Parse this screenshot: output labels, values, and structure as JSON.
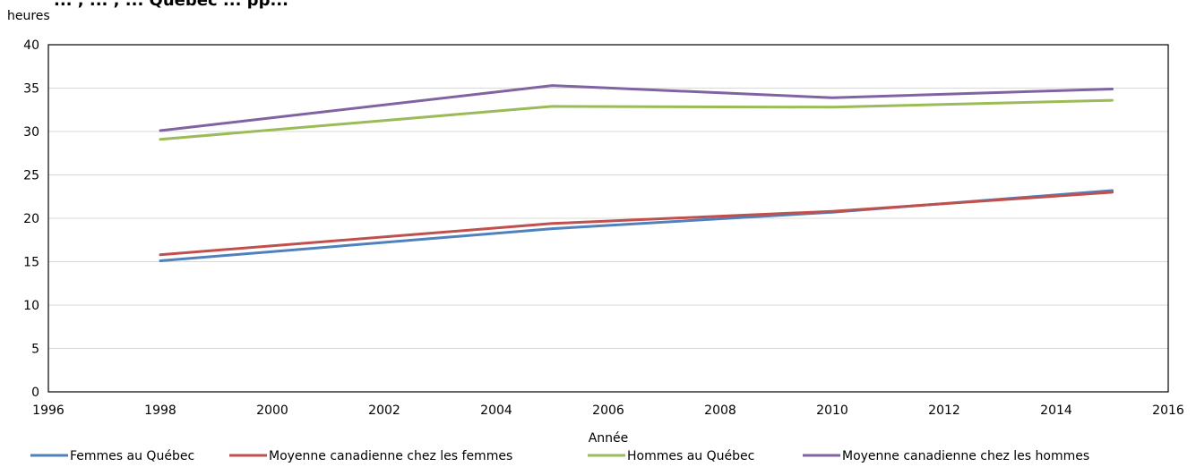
{
  "chart_data": {
    "type": "line",
    "title": "... , ... , ... Québec ... pp...",
    "ylabel": "heures",
    "xlabel": "Année",
    "xlim": [
      1996,
      2016
    ],
    "ylim": [
      0,
      40
    ],
    "xticks": [
      1996,
      1998,
      2000,
      2002,
      2004,
      2006,
      2008,
      2010,
      2012,
      2014,
      2016
    ],
    "yticks": [
      0,
      5,
      10,
      15,
      20,
      25,
      30,
      35,
      40
    ],
    "grid": "horizontal",
    "legend_position": "bottom",
    "x": [
      1998,
      2005,
      2010,
      2015
    ],
    "series": [
      {
        "name": "Femmes au Québec",
        "color": "#4f81bd",
        "values": [
          15.1,
          18.8,
          20.7,
          23.2
        ]
      },
      {
        "name": "Moyenne canadienne chez les femmes",
        "color": "#c0504d",
        "values": [
          15.8,
          19.4,
          20.8,
          23.0
        ]
      },
      {
        "name": "Hommes au Québec",
        "color": "#9bbb59",
        "values": [
          29.1,
          32.9,
          32.8,
          33.6
        ]
      },
      {
        "name": "Moyenne canadienne chez les hommes",
        "color": "#8064a2",
        "values": [
          30.1,
          35.3,
          33.9,
          34.9
        ]
      }
    ]
  }
}
